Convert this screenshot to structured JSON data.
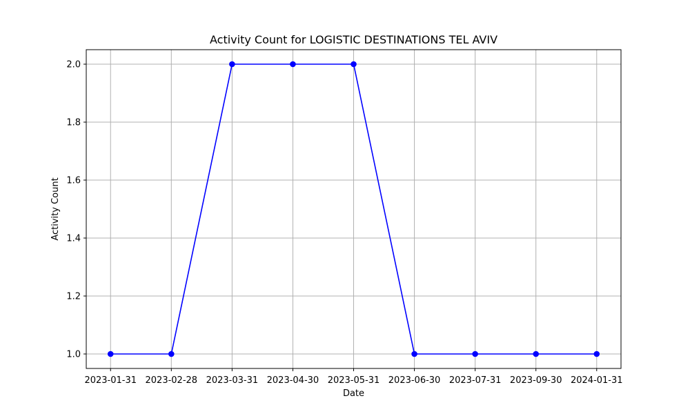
{
  "chart_data": {
    "type": "line",
    "title": "Activity Count for LOGISTIC DESTINATIONS TEL AVIV",
    "xlabel": "Date",
    "ylabel": "Activity Count",
    "categories": [
      "2023-01-31",
      "2023-02-28",
      "2023-03-31",
      "2023-04-30",
      "2023-05-31",
      "2023-06-30",
      "2023-07-31",
      "2023-09-30",
      "2024-01-31"
    ],
    "series": [
      {
        "values": [
          1,
          1,
          2,
          2,
          2,
          1,
          1,
          1,
          1
        ],
        "color": "#0000ff",
        "marker": "circle"
      }
    ],
    "y_ticks": [
      "1.0",
      "1.2",
      "1.4",
      "1.6",
      "1.8",
      "2.0"
    ],
    "ylim": [
      0.95,
      2.05
    ],
    "grid": true,
    "legend": "none"
  }
}
